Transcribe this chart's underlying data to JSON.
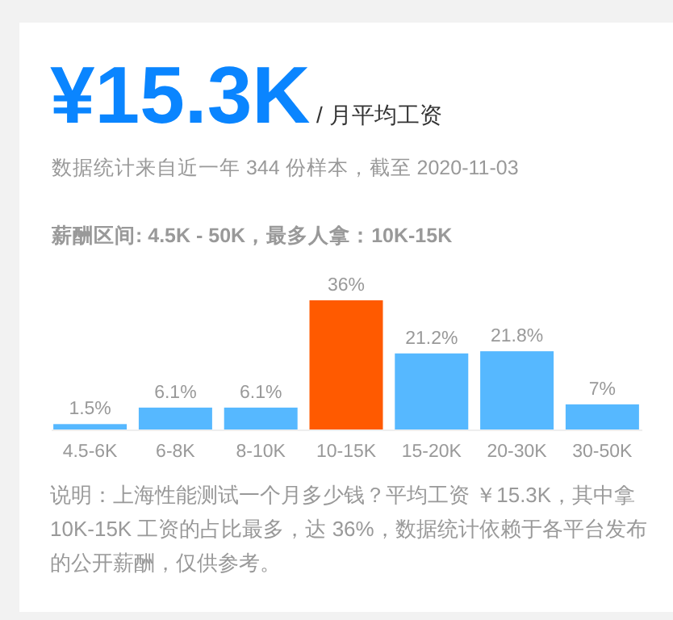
{
  "chart_data": {
    "type": "bar",
    "title": "¥15.3K",
    "subtitle": "/ 月平均工资",
    "annotations": [
      "数据统计来自近一年 344 份样本，截至 2020-11-03",
      "薪酬区间: 4.5K - 50K，最多人拿：10K-15K",
      "说明：上海性能测试一个月多少钱？平均工资 ￥15.3K，其中拿 10K-15K 工资的占比最多，达 36%，数据统计依赖于各平台发布的公开薪酬，仅供参考。"
    ],
    "categories": [
      "4.5-6K",
      "6-8K",
      "8-10K",
      "10-15K",
      "15-20K",
      "20-30K",
      "30-50K"
    ],
    "values": [
      1.5,
      6.1,
      6.1,
      36,
      21.2,
      21.8,
      7
    ],
    "colors": [
      "#56b8ff",
      "#56b8ff",
      "#56b8ff",
      "#ff5a00",
      "#56b8ff",
      "#56b8ff",
      "#56b8ff"
    ],
    "value_labels": [
      "1.5%",
      "6.1%",
      "6.1%",
      "36%",
      "21.2%",
      "21.8%",
      "7%"
    ]
  }
}
